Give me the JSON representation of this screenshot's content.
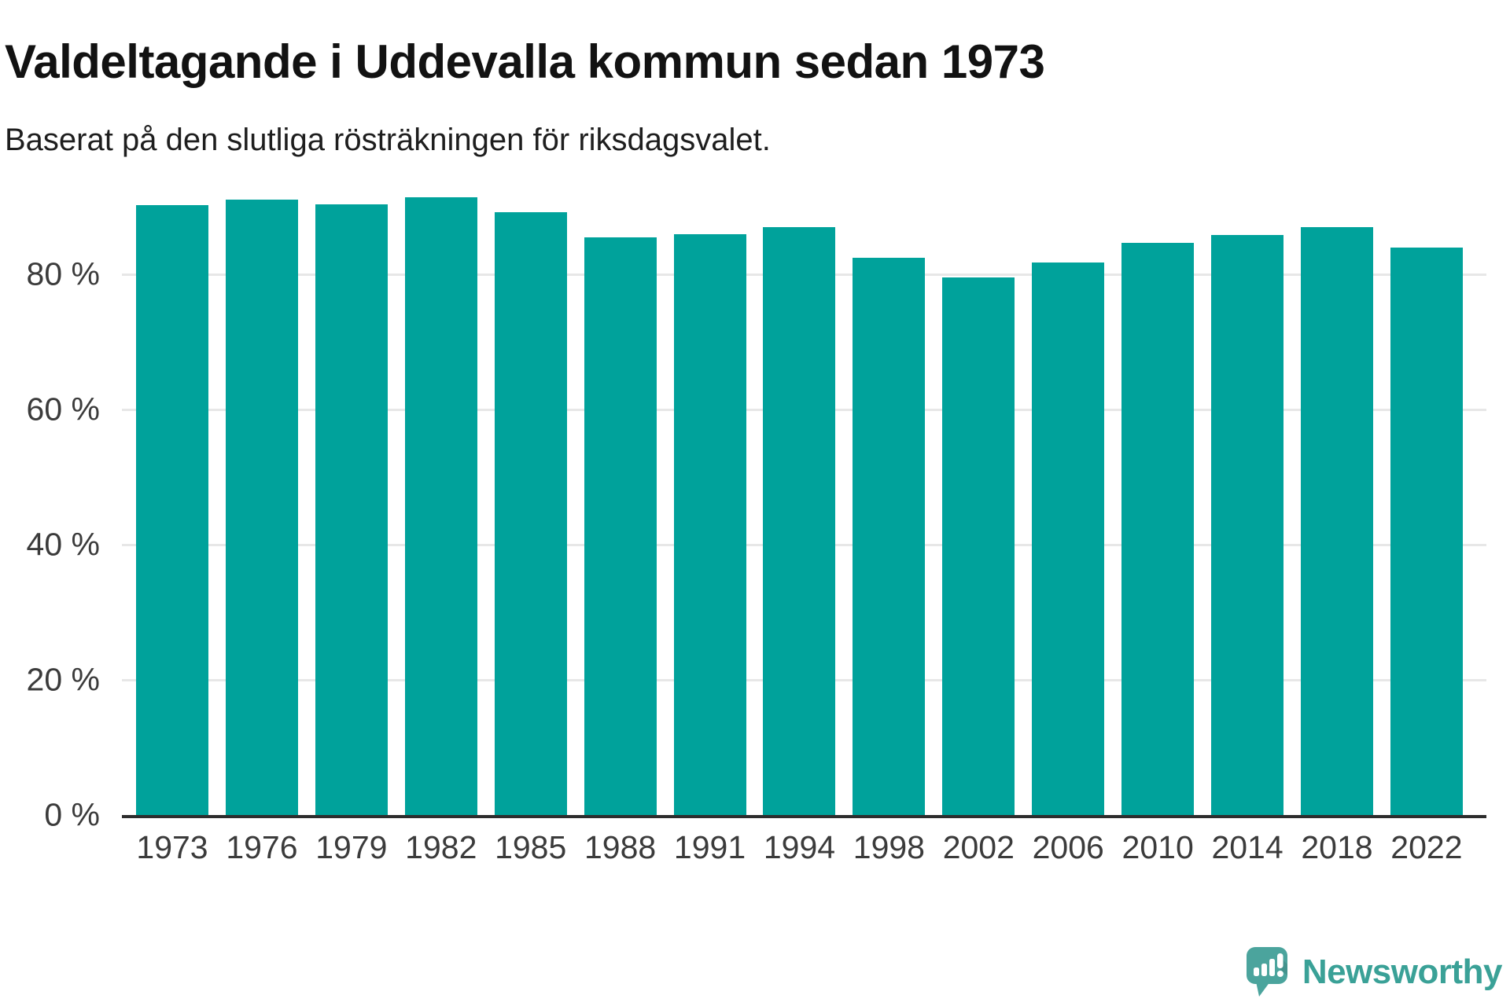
{
  "header": {
    "title": "Valdeltagande i Uddevalla kommun sedan 1973",
    "subtitle": "Baserat på den slutliga rösträkningen för riksdagsvalet."
  },
  "chart_data": {
    "type": "bar",
    "title": "Valdeltagande i Uddevalla kommun sedan 1973",
    "subtitle": "Baserat på den slutliga rösträkningen för riksdagsvalet.",
    "categories": [
      "1973",
      "1976",
      "1979",
      "1982",
      "1985",
      "1988",
      "1991",
      "1994",
      "1998",
      "2002",
      "2006",
      "2010",
      "2014",
      "2018",
      "2022"
    ],
    "values": [
      90.2,
      91.0,
      90.4,
      91.4,
      89.2,
      85.5,
      85.9,
      87.0,
      82.4,
      79.5,
      81.8,
      84.7,
      85.8,
      87.0,
      84.0
    ],
    "unit": "%",
    "xlabel": "",
    "ylabel": "",
    "ylim": [
      0,
      100
    ],
    "yticks": [
      {
        "value": 0,
        "label": "0 %"
      },
      {
        "value": 20,
        "label": "20 %"
      },
      {
        "value": 40,
        "label": "40 %"
      },
      {
        "value": 60,
        "label": "60 %"
      },
      {
        "value": 80,
        "label": "80 %"
      }
    ],
    "grid": true,
    "legend": "none",
    "bar_color": "#00a29b"
  },
  "branding": {
    "logo_text": "Newsworthy",
    "logo_color": "#3aa197",
    "icon_color": "#4ba49d"
  },
  "colors": {
    "background": "#ffffff",
    "bar": "#00a29b",
    "gridline": "#e7e7e7",
    "axis_line": "#2d2d2d",
    "tick_text": "#3b3b3b",
    "title_text": "#121212",
    "subtitle_text": "#1e1e1e"
  }
}
